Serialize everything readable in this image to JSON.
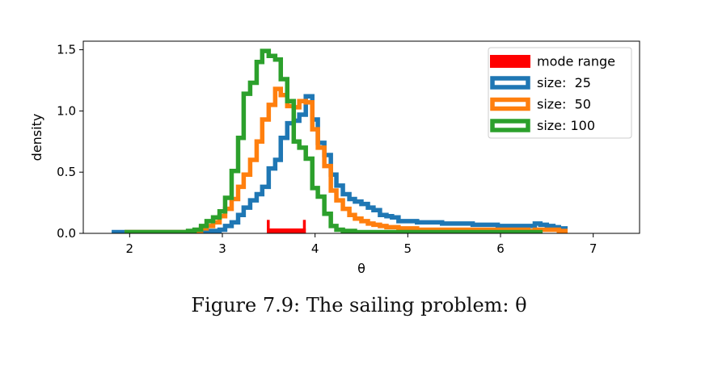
{
  "caption": {
    "text": "Figure 7.9: The sailing problem: θ"
  },
  "chart_data": {
    "type": "histogram",
    "xlabel": "θ",
    "ylabel": "density",
    "xlim": [
      1.5,
      7.5
    ],
    "ylim": [
      0,
      1.57
    ],
    "xticks": [
      2,
      3,
      4,
      5,
      6,
      7
    ],
    "yticks": [
      0.0,
      0.5,
      1.0,
      1.5
    ],
    "xtick_labels": [
      "2",
      "3",
      "4",
      "5",
      "6",
      "7"
    ],
    "ytick_labels": [
      "0.0",
      "0.5",
      "1.0",
      "1.5"
    ],
    "grid": false,
    "legend_position": "top-right",
    "mode_range": {
      "name": "mode range",
      "color": "#ff0000",
      "x": [
        3.48,
        3.9
      ],
      "height": 0.04,
      "end_height": 0.11
    },
    "series": [
      {
        "name": "size:  25",
        "color": "#1f77b4",
        "edges": [
          1.83,
          1.9,
          1.97,
          2.03,
          2.1,
          2.17,
          2.23,
          2.3,
          2.37,
          2.43,
          2.5,
          2.57,
          2.63,
          2.7,
          2.77,
          2.83,
          2.9,
          2.97,
          3.03,
          3.1,
          3.17,
          3.23,
          3.3,
          3.37,
          3.43,
          3.5,
          3.57,
          3.63,
          3.7,
          3.77,
          3.83,
          3.9,
          3.97,
          4.03,
          4.1,
          4.17,
          4.23,
          4.3,
          4.37,
          4.43,
          4.5,
          4.57,
          4.63,
          4.7,
          4.77,
          4.83,
          4.9,
          4.97,
          5.03,
          5.1,
          5.17,
          5.23,
          5.3,
          5.37,
          5.43,
          5.5,
          5.57,
          5.63,
          5.7,
          5.77,
          5.83,
          5.9,
          5.97,
          6.03,
          6.1,
          6.17,
          6.23,
          6.3,
          6.37,
          6.43,
          6.5,
          6.57,
          6.63,
          6.7
        ],
        "values": [
          0.01,
          0.01,
          0.01,
          0.01,
          0.01,
          0.01,
          0.01,
          0.01,
          0.01,
          0.01,
          0.01,
          0.01,
          0.01,
          0.01,
          0.02,
          0.02,
          0.02,
          0.03,
          0.06,
          0.09,
          0.15,
          0.21,
          0.27,
          0.32,
          0.38,
          0.53,
          0.6,
          0.78,
          0.9,
          0.92,
          0.97,
          1.12,
          0.93,
          0.74,
          0.64,
          0.48,
          0.39,
          0.32,
          0.28,
          0.26,
          0.24,
          0.21,
          0.19,
          0.15,
          0.14,
          0.13,
          0.1,
          0.1,
          0.1,
          0.09,
          0.09,
          0.09,
          0.09,
          0.08,
          0.08,
          0.08,
          0.08,
          0.08,
          0.07,
          0.07,
          0.07,
          0.07,
          0.06,
          0.06,
          0.06,
          0.06,
          0.06,
          0.06,
          0.08,
          0.07,
          0.06,
          0.05,
          0.04
        ]
      },
      {
        "name": "size:  50",
        "color": "#ff7f0e",
        "edges": [
          1.97,
          2.03,
          2.1,
          2.17,
          2.23,
          2.3,
          2.37,
          2.43,
          2.5,
          2.57,
          2.63,
          2.7,
          2.77,
          2.83,
          2.9,
          2.97,
          3.03,
          3.1,
          3.17,
          3.23,
          3.3,
          3.37,
          3.43,
          3.5,
          3.57,
          3.63,
          3.7,
          3.77,
          3.83,
          3.9,
          3.97,
          4.03,
          4.1,
          4.17,
          4.23,
          4.3,
          4.37,
          4.43,
          4.5,
          4.57,
          4.63,
          4.7,
          4.77,
          4.83,
          4.9,
          4.97,
          5.03,
          5.1,
          5.17,
          5.23,
          5.3,
          5.37,
          5.43,
          5.5,
          5.57,
          5.63,
          5.7,
          5.77,
          5.83,
          5.9,
          5.97,
          6.03,
          6.1,
          6.17,
          6.23,
          6.3,
          6.37,
          6.43,
          6.5,
          6.57,
          6.63,
          6.7
        ],
        "values": [
          0.01,
          0.01,
          0.01,
          0.01,
          0.01,
          0.01,
          0.01,
          0.01,
          0.01,
          0.01,
          0.01,
          0.02,
          0.04,
          0.06,
          0.09,
          0.14,
          0.2,
          0.28,
          0.38,
          0.48,
          0.6,
          0.75,
          0.93,
          1.05,
          1.18,
          1.13,
          1.04,
          1.03,
          1.08,
          1.07,
          0.85,
          0.7,
          0.55,
          0.35,
          0.27,
          0.2,
          0.15,
          0.12,
          0.1,
          0.08,
          0.07,
          0.06,
          0.05,
          0.05,
          0.04,
          0.04,
          0.04,
          0.03,
          0.03,
          0.03,
          0.03,
          0.03,
          0.03,
          0.03,
          0.03,
          0.03,
          0.03,
          0.03,
          0.03,
          0.03,
          0.03,
          0.03,
          0.03,
          0.03,
          0.03,
          0.02,
          0.03,
          0.03,
          0.03,
          0.03,
          0.02
        ]
      },
      {
        "name": "size: 100",
        "color": "#2ca02c",
        "edges": [
          1.97,
          2.03,
          2.1,
          2.17,
          2.23,
          2.3,
          2.37,
          2.43,
          2.5,
          2.57,
          2.63,
          2.7,
          2.77,
          2.83,
          2.9,
          2.97,
          3.03,
          3.1,
          3.17,
          3.23,
          3.3,
          3.37,
          3.43,
          3.5,
          3.57,
          3.63,
          3.7,
          3.77,
          3.83,
          3.9,
          3.97,
          4.03,
          4.1,
          4.17,
          4.23,
          4.3,
          4.37,
          4.43,
          4.5,
          4.57,
          4.63,
          4.7,
          4.77,
          4.83,
          4.9,
          4.97,
          5.03,
          5.1,
          5.17,
          5.23,
          5.3,
          5.37,
          5.43,
          5.5,
          5.57,
          5.63,
          5.7,
          5.77,
          5.83,
          5.9,
          5.97,
          6.03,
          6.1,
          6.17,
          6.23,
          6.3,
          6.37,
          6.43
        ],
        "values": [
          0.01,
          0.01,
          0.01,
          0.01,
          0.01,
          0.01,
          0.01,
          0.01,
          0.01,
          0.01,
          0.02,
          0.03,
          0.06,
          0.1,
          0.13,
          0.18,
          0.29,
          0.51,
          0.78,
          1.14,
          1.23,
          1.4,
          1.49,
          1.45,
          1.42,
          1.26,
          1.08,
          0.75,
          0.7,
          0.61,
          0.37,
          0.3,
          0.16,
          0.06,
          0.03,
          0.02,
          0.02,
          0.01,
          0.01,
          0.01,
          0.01,
          0.01,
          0.01,
          0.01,
          0.01,
          0.01,
          0.01,
          0.01,
          0.01,
          0.01,
          0.01,
          0.01,
          0.01,
          0.01,
          0.01,
          0.01,
          0.01,
          0.01,
          0.01,
          0.01,
          0.01,
          0.01,
          0.01,
          0.01,
          0.01,
          0.01,
          0.01
        ]
      }
    ]
  }
}
